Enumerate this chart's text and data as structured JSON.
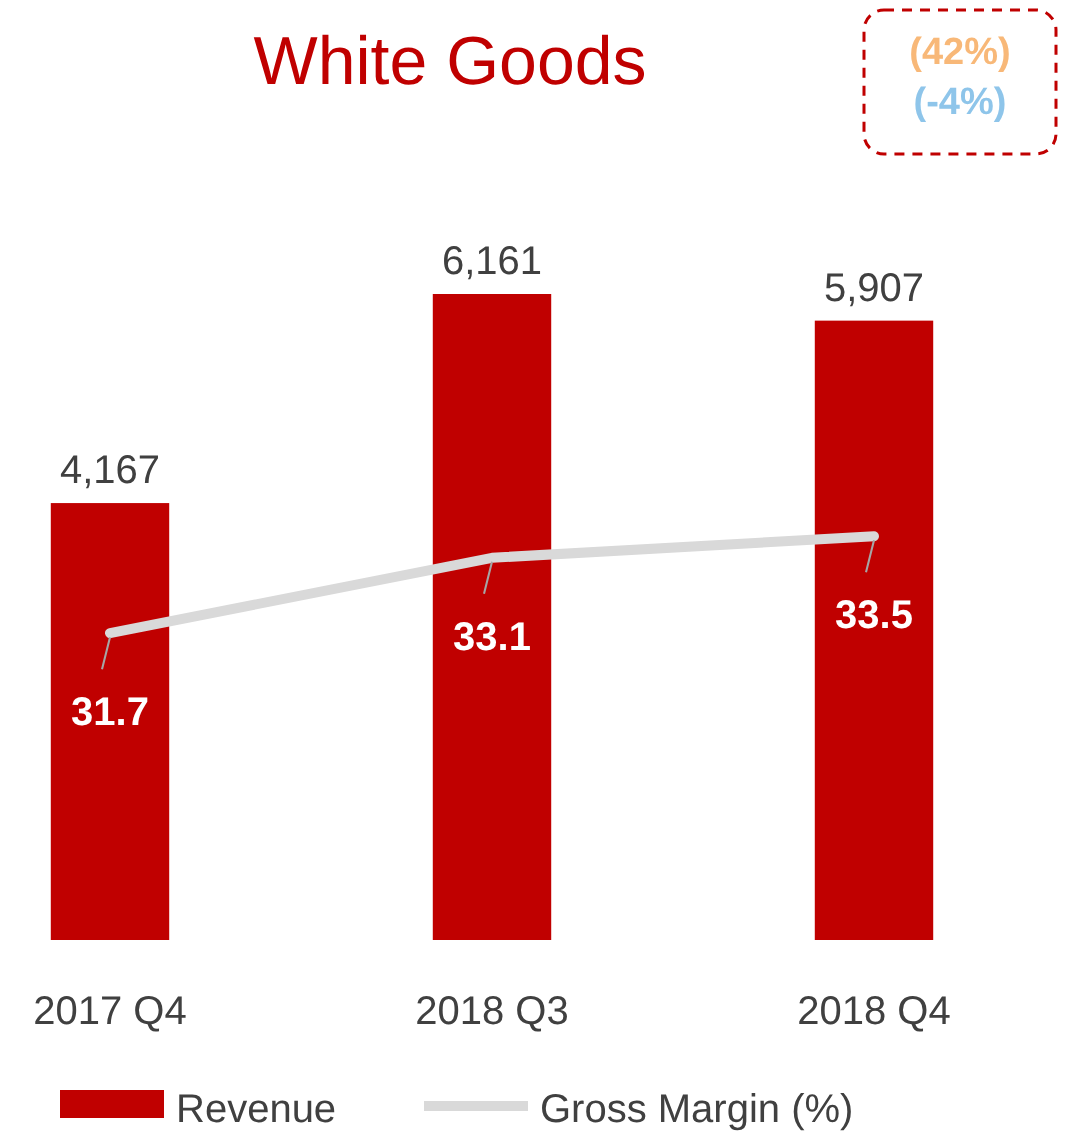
{
  "chart_data": {
    "type": "bar",
    "title": "White Goods",
    "categories": [
      "2017 Q4",
      "2018 Q3",
      "2018 Q4"
    ],
    "series": [
      {
        "name": "Revenue",
        "color": "#c00000",
        "values": [
          4167,
          6161,
          5907
        ],
        "value_labels": [
          "4,167",
          "6,161",
          "5,907"
        ]
      },
      {
        "name": "Gross Margin (%)",
        "type": "line",
        "axis": "y2",
        "color": "#d9d9d9",
        "values": [
          31.7,
          33.1,
          33.5
        ]
      }
    ],
    "y2lim": [
      26,
      38
    ],
    "data_labels": true,
    "legend": "bottom",
    "marker": "none",
    "tick_labels": "x",
    "annotations": [
      "(42%)",
      "(-4%)"
    ]
  }
}
